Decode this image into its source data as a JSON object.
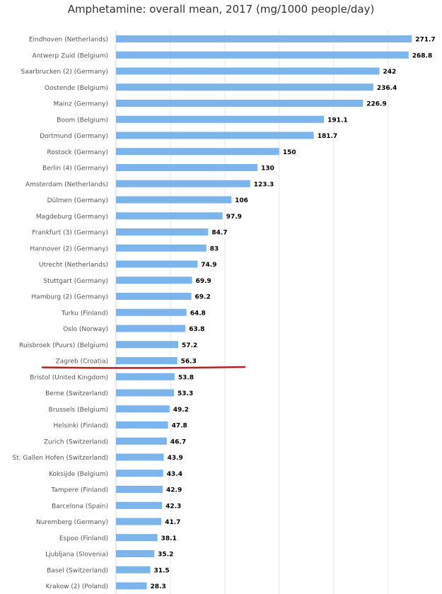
{
  "chart_data": {
    "type": "bar",
    "orientation": "horizontal",
    "title": "Amphetamine: overall mean, 2017 (mg/1000 people/day)",
    "xlabel": "",
    "ylabel": "",
    "xlim": [
      0,
      280
    ],
    "grid": true,
    "legend": "none",
    "bar_color": "#7cb5ec",
    "highlight": {
      "category": "Zagreb (Croatia)",
      "line_color": "#b22222",
      "style": "underline"
    },
    "categories": [
      "Eindhoven (Netherlands)",
      "Antwerp Zuid (Belgium)",
      "Saarbrucken (2) (Germany)",
      "Oostende (Belgium)",
      "Mainz (Germany)",
      "Boom (Belgium)",
      "Dortmund (Germany)",
      "Rostock (Germany)",
      "Berlin (4) (Germany)",
      "Amsterdam (Netherlands)",
      "Dülmen (Germany)",
      "Magdeburg (Germany)",
      "Frankfurt (3) (Germany)",
      "Hannover (2) (Germany)",
      "Utrecht (Netherlands)",
      "Stuttgart (Germany)",
      "Hamburg (2) (Germany)",
      "Turku (Finland)",
      "Oslo (Norway)",
      "Ruisbroek (Puurs) (Belgium)",
      "Zagreb (Croatia)",
      "Bristol (United Kingdom)",
      "Berne (Switzerland)",
      "Brussels (Belgium)",
      "Helsinki (Finland)",
      "Zurich (Switzerland)",
      "St. Gallen Hofen (Switzerland)",
      "Koksijde (Belgium)",
      "Tampere (Finland)",
      "Barcelona (Spain)",
      "Nuremberg (Germany)",
      "Espoo (Finland)",
      "Ljubljana (Slovenia)",
      "Basel (Switzerland)",
      "Krakow (2) (Poland)"
    ],
    "values": [
      271.7,
      268.8,
      242,
      236.4,
      226.9,
      191.1,
      181.7,
      150,
      130,
      123.3,
      106,
      97.9,
      84.7,
      83,
      74.9,
      69.9,
      69.2,
      64.8,
      63.8,
      57.2,
      56.3,
      53.8,
      53.3,
      49.2,
      47.8,
      46.7,
      43.9,
      43.4,
      42.9,
      42.3,
      41.7,
      38.1,
      35.2,
      31.5,
      28.3
    ],
    "labels": [
      "271.7",
      "268.8",
      "242",
      "236.4",
      "226.9",
      "191.1",
      "181.7",
      "150",
      "130",
      "123.3",
      "106",
      "97.9",
      "84.7",
      "83",
      "74.9",
      "69.9",
      "69.2",
      "64.8",
      "63.8",
      "57.2",
      "56.3",
      "53.8",
      "53.3",
      "49.2",
      "47.8",
      "46.7",
      "43.9",
      "43.4",
      "42.9",
      "42.3",
      "41.7",
      "38.1",
      "35.2",
      "31.5",
      "28.3"
    ]
  }
}
